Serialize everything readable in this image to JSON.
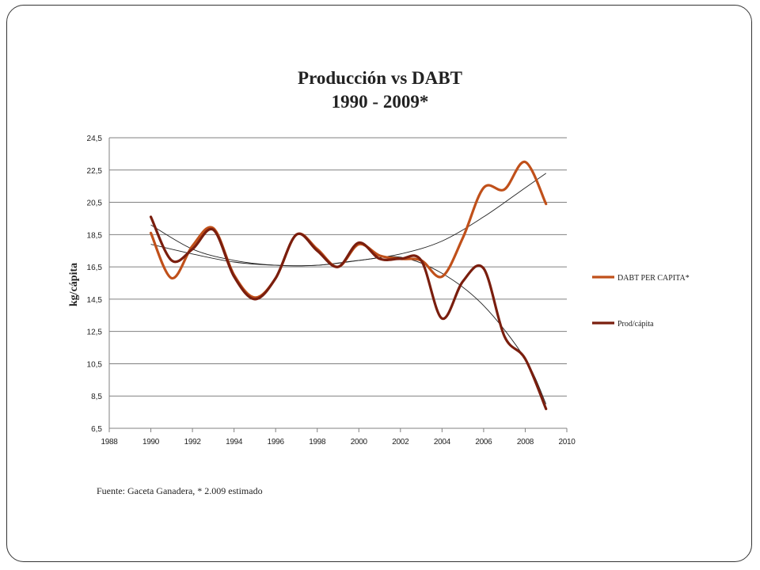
{
  "slide": {
    "title_line1": "Producción vs DABT",
    "title_line2": "1990 - 2009*",
    "source": "Fuente: Gaceta Ganadera, * 2.009 estimado"
  },
  "chart_data": {
    "type": "line",
    "title": "Producción vs DABT 1990 - 2009*",
    "xlabel": "",
    "ylabel": "kg/cápita",
    "xlim": [
      1988,
      2010
    ],
    "ylim": [
      6.5,
      24.5
    ],
    "x_ticks": [
      "1988",
      "1990",
      "1992",
      "1994",
      "1996",
      "1998",
      "2000",
      "2002",
      "2004",
      "2006",
      "2008",
      "2010"
    ],
    "y_ticks": [
      "24,5",
      "22,5",
      "20,5",
      "18,5",
      "16,5",
      "14,5",
      "12,5",
      "10,5",
      "8,5",
      "6,5"
    ],
    "y_tick_values": [
      24.5,
      22.5,
      20.5,
      18.5,
      16.5,
      14.5,
      12.5,
      10.5,
      8.5,
      6.5
    ],
    "grid": "horizontal",
    "legend_position": "right",
    "x": [
      1990,
      1991,
      1992,
      1993,
      1994,
      1995,
      1996,
      1997,
      1998,
      1999,
      2000,
      2001,
      2002,
      2003,
      2004,
      2005,
      2006,
      2007,
      2008,
      2009
    ],
    "series": [
      {
        "name": "DABT PER CAPITA*",
        "color": "#c0501a",
        "values": [
          18.6,
          15.8,
          17.8,
          18.9,
          16.0,
          14.6,
          15.8,
          18.5,
          17.6,
          16.5,
          17.9,
          17.2,
          17.0,
          16.9,
          15.9,
          18.3,
          21.4,
          21.3,
          23.0,
          20.4
        ]
      },
      {
        "name": "Prod/cápita",
        "color": "#7a1e0e",
        "values": [
          19.6,
          16.9,
          17.6,
          18.8,
          15.9,
          14.5,
          15.8,
          18.5,
          17.5,
          16.5,
          18.0,
          17.0,
          17.0,
          16.9,
          13.3,
          15.6,
          16.4,
          12.2,
          10.8,
          7.7
        ]
      }
    ],
    "trendlines": [
      {
        "of": "DABT PER CAPITA*",
        "kind": "polynomial",
        "color": "#222222",
        "x": [
          1990,
          1992,
          1994,
          1996,
          1998,
          2000,
          2002,
          2004,
          2006,
          2008,
          2009
        ],
        "values": [
          17.9,
          17.3,
          16.8,
          16.6,
          16.6,
          16.9,
          17.3,
          18.1,
          19.6,
          21.4,
          22.3
        ]
      },
      {
        "of": "Prod/cápita",
        "kind": "polynomial",
        "color": "#222222",
        "x": [
          1990,
          1992,
          1994,
          1996,
          1998,
          2000,
          2002,
          2004,
          2006,
          2008,
          2009
        ],
        "values": [
          19.1,
          17.6,
          16.9,
          16.6,
          16.6,
          16.9,
          17.1,
          16.1,
          14.1,
          10.8,
          8.0
        ]
      }
    ]
  }
}
